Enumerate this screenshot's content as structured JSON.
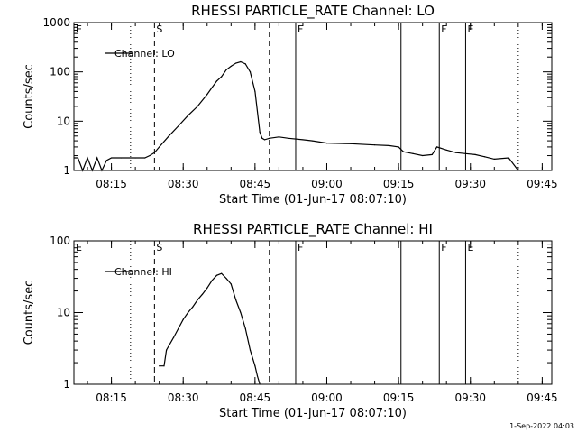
{
  "chart_data": [
    {
      "type": "line",
      "title": "RHESSI PARTICLE_RATE Channel: LO",
      "xlabel": "Start Time (01-Jun-17 08:07:10)",
      "ylabel": "Counts/sec",
      "yscale": "log",
      "ylim": [
        1,
        1000
      ],
      "xlim": [
        "08:07:10",
        "09:47:00"
      ],
      "xticks": [
        "08:15",
        "08:30",
        "08:45",
        "09:00",
        "09:15",
        "09:30",
        "09:45"
      ],
      "yticks": [
        "1",
        "10",
        "100",
        "1000"
      ],
      "legend": {
        "label": "Channel: LO",
        "position": "top-left"
      },
      "series": [
        {
          "name": "Channel: LO",
          "x": [
            "08:07:10",
            "08:08:00",
            "08:09:00",
            "08:10:00",
            "08:11:00",
            "08:12:00",
            "08:13:00",
            "08:14:00",
            "08:15:00",
            "08:17:00",
            "08:20:00",
            "08:22:00",
            "08:23:00",
            "08:24:00",
            "08:25:00",
            "08:27:00",
            "08:29:00",
            "08:31:00",
            "08:33:00",
            "08:35:00",
            "08:36:00",
            "08:37:00",
            "08:38:00",
            "08:39:00",
            "08:40:00",
            "08:41:00",
            "08:42:00",
            "08:43:00",
            "08:44:00",
            "08:45:00",
            "08:46:00",
            "08:46:30",
            "08:47:00",
            "08:48:00",
            "08:50:00",
            "08:52:00",
            "08:55:00",
            "08:57:00",
            "09:00:00",
            "09:05:00",
            "09:10:00",
            "09:13:00",
            "09:15:00",
            "09:16:00",
            "09:18:00",
            "09:20:00",
            "09:22:00",
            "09:23:00",
            "09:25:00",
            "09:27:00",
            "09:29:00",
            "09:31:00",
            "09:33:00",
            "09:35:00",
            "09:38:00",
            "09:40:00"
          ],
          "values": [
            1.8,
            1.8,
            1,
            1.8,
            1,
            1.8,
            1,
            1.6,
            1.8,
            1.8,
            1.8,
            1.8,
            2,
            2.3,
            3,
            5,
            8,
            13,
            20,
            35,
            48,
            65,
            80,
            110,
            130,
            150,
            160,
            145,
            100,
            40,
            6,
            4.5,
            4.2,
            4.5,
            4.8,
            4.5,
            4.2,
            4.0,
            3.6,
            3.5,
            3.3,
            3.2,
            3.0,
            2.4,
            2.2,
            2.0,
            2.1,
            3.0,
            2.6,
            2.3,
            2.2,
            2.1,
            1.9,
            1.7,
            1.8,
            1.0
          ]
        }
      ],
      "markers": [
        {
          "label": "E",
          "time": "08:07:10",
          "style": "solid"
        },
        {
          "label": "",
          "time": "08:19:00",
          "style": "dotted"
        },
        {
          "label": "S",
          "time": "08:24:00",
          "style": "dashed"
        },
        {
          "label": "",
          "time": "08:48:00",
          "style": "dashed"
        },
        {
          "label": "F",
          "time": "08:53:30",
          "style": "solid"
        },
        {
          "label": "",
          "time": "09:15:30",
          "style": "solid"
        },
        {
          "label": "F",
          "time": "09:23:30",
          "style": "solid"
        },
        {
          "label": "E",
          "time": "09:29:00",
          "style": "solid"
        },
        {
          "label": "",
          "time": "09:40:00",
          "style": "dotted"
        }
      ]
    },
    {
      "type": "line",
      "title": "RHESSI PARTICLE_RATE Channel: HI",
      "xlabel": "Start Time (01-Jun-17 08:07:10)",
      "ylabel": "Counts/sec",
      "yscale": "log",
      "ylim": [
        1,
        100
      ],
      "xlim": [
        "08:07:10",
        "09:47:00"
      ],
      "xticks": [
        "08:15",
        "08:30",
        "08:45",
        "09:00",
        "09:15",
        "09:30",
        "09:45"
      ],
      "yticks": [
        "1",
        "10",
        "100"
      ],
      "legend": {
        "label": "Channel: HI",
        "position": "top-left"
      },
      "series": [
        {
          "name": "Channel: HI",
          "x": [
            "08:25:00",
            "08:26:00",
            "08:26:30",
            "08:28:00",
            "08:29:00",
            "08:30:00",
            "08:31:00",
            "08:32:00",
            "08:33:00",
            "08:34:00",
            "08:35:00",
            "08:36:00",
            "08:37:00",
            "08:38:00",
            "08:39:00",
            "08:40:00",
            "08:41:00",
            "08:42:00",
            "08:43:00",
            "08:44:00",
            "08:45:00",
            "08:45:30",
            "08:46:00"
          ],
          "values": [
            1.8,
            1.8,
            3,
            4.5,
            6,
            8,
            10,
            12,
            15,
            18,
            22,
            28,
            33,
            35,
            30,
            25,
            15,
            10,
            6,
            3,
            1.8,
            1.3,
            1.0
          ]
        }
      ],
      "markers": [
        {
          "label": "E",
          "time": "08:07:10",
          "style": "solid"
        },
        {
          "label": "",
          "time": "08:19:00",
          "style": "dotted"
        },
        {
          "label": "S",
          "time": "08:24:00",
          "style": "dashed"
        },
        {
          "label": "",
          "time": "08:48:00",
          "style": "dashed"
        },
        {
          "label": "F",
          "time": "08:53:30",
          "style": "solid"
        },
        {
          "label": "",
          "time": "09:15:30",
          "style": "solid"
        },
        {
          "label": "F",
          "time": "09:23:30",
          "style": "solid"
        },
        {
          "label": "E",
          "time": "09:29:00",
          "style": "solid"
        },
        {
          "label": "",
          "time": "09:40:00",
          "style": "dotted"
        }
      ]
    }
  ],
  "timestamp": "1-Sep-2022 04:03"
}
